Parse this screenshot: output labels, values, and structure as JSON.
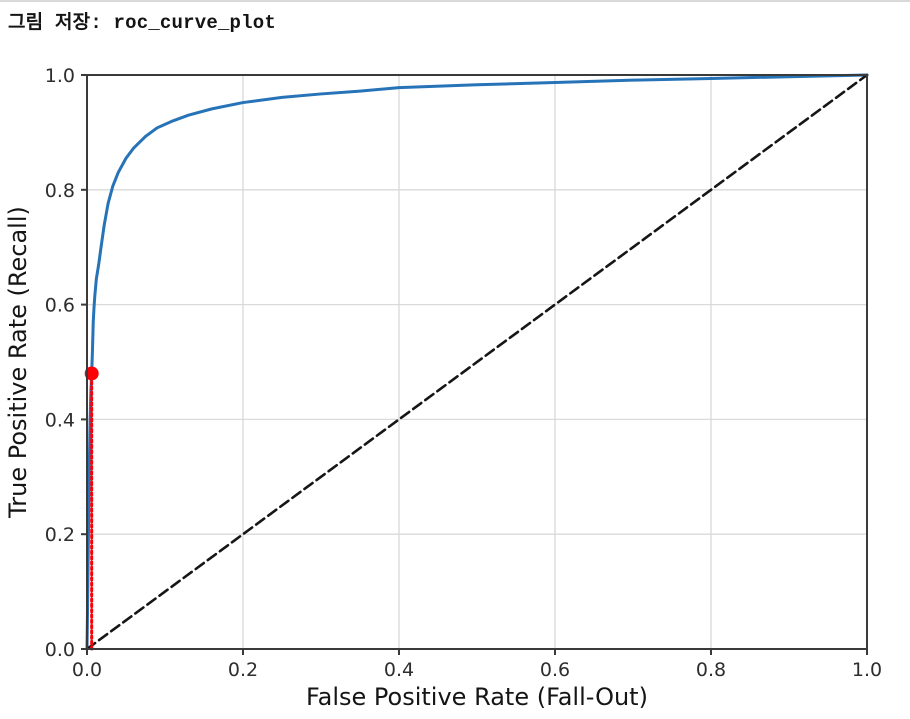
{
  "caption": {
    "text": "그림 저장: roc_curve_plot"
  },
  "chart_data": {
    "type": "line",
    "title": "",
    "xlabel": "False Positive Rate (Fall-Out)",
    "ylabel": "True Positive Rate (Recall)",
    "xlim": [
      0.0,
      1.0
    ],
    "ylim": [
      0.0,
      1.0
    ],
    "grid": true,
    "legend": "none",
    "xticks": {
      "values": [
        0.0,
        0.2,
        0.4,
        0.6,
        0.8,
        1.0
      ],
      "labels": [
        "0.0",
        "0.2",
        "0.4",
        "0.6",
        "0.8",
        "1.0"
      ]
    },
    "yticks": {
      "values": [
        0.0,
        0.2,
        0.4,
        0.6,
        0.8,
        1.0
      ],
      "labels": [
        "0.0",
        "0.2",
        "0.4",
        "0.6",
        "0.8",
        "1.0"
      ]
    },
    "series": [
      {
        "name": "roc-curve",
        "color": "#2673b8",
        "width": 3,
        "style": "solid",
        "points": [
          [
            0.0,
            0.0
          ],
          [
            0.001,
            0.1
          ],
          [
            0.002,
            0.22
          ],
          [
            0.003,
            0.32
          ],
          [
            0.004,
            0.4
          ],
          [
            0.005,
            0.45
          ],
          [
            0.006,
            0.48
          ],
          [
            0.007,
            0.52
          ],
          [
            0.008,
            0.57
          ],
          [
            0.009,
            0.595
          ],
          [
            0.01,
            0.615
          ],
          [
            0.012,
            0.645
          ],
          [
            0.015,
            0.67
          ],
          [
            0.018,
            0.7
          ],
          [
            0.022,
            0.738
          ],
          [
            0.027,
            0.776
          ],
          [
            0.033,
            0.806
          ],
          [
            0.04,
            0.83
          ],
          [
            0.05,
            0.855
          ],
          [
            0.06,
            0.873
          ],
          [
            0.075,
            0.893
          ],
          [
            0.09,
            0.908
          ],
          [
            0.11,
            0.92
          ],
          [
            0.13,
            0.93
          ],
          [
            0.16,
            0.941
          ],
          [
            0.2,
            0.952
          ],
          [
            0.25,
            0.961
          ],
          [
            0.3,
            0.967
          ],
          [
            0.35,
            0.972
          ],
          [
            0.4,
            0.978
          ],
          [
            0.5,
            0.983
          ],
          [
            0.6,
            0.987
          ],
          [
            0.7,
            0.991
          ],
          [
            0.8,
            0.994
          ],
          [
            0.9,
            0.997
          ],
          [
            1.0,
            1.0
          ]
        ]
      },
      {
        "name": "chance-diagonal",
        "color": "#161616",
        "width": 2.6,
        "style": "dashed",
        "points": [
          [
            0.0,
            0.0
          ],
          [
            1.0,
            1.0
          ]
        ]
      },
      {
        "name": "threshold-vline",
        "color": "#fb0006",
        "width": 3,
        "style": "dotted",
        "points": [
          [
            0.006,
            0.0
          ],
          [
            0.006,
            0.48
          ]
        ]
      }
    ],
    "marker": {
      "name": "operating-point",
      "x": 0.006,
      "y": 0.48,
      "color": "#fb0006",
      "radius": 7
    },
    "axes_style": {
      "spine_color": "#3a3a3a",
      "grid_color": "#d9d9d9",
      "tick_color": "#3a3a3a",
      "tick_label_color": "#2e2e2e",
      "axis_label_color": "#151515"
    }
  }
}
